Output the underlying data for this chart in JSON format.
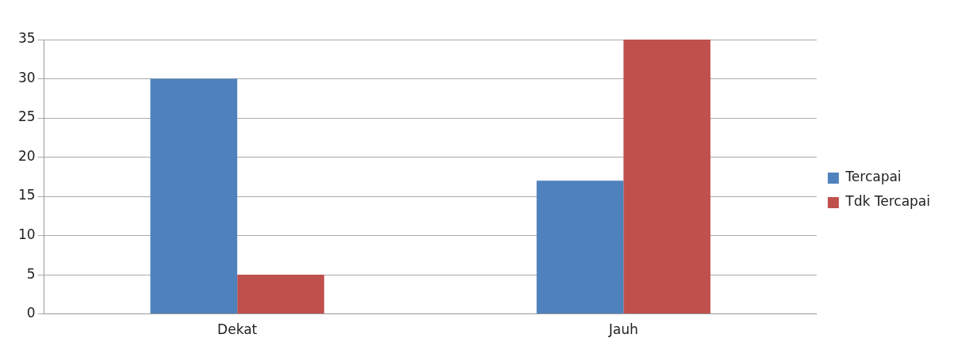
{
  "chart_data": {
    "type": "bar",
    "categories": [
      "Dekat",
      "Jauh"
    ],
    "series": [
      {
        "name": "Tercapai",
        "color": "#4f81bd",
        "values": [
          30,
          17
        ]
      },
      {
        "name": "Tdk Tercapai",
        "color": "#c0504d",
        "values": [
          5,
          35
        ]
      }
    ],
    "ylim": [
      0,
      35
    ],
    "yticks": [
      0,
      5,
      10,
      15,
      20,
      25,
      30,
      35
    ],
    "grid": "y",
    "legend": "right"
  }
}
